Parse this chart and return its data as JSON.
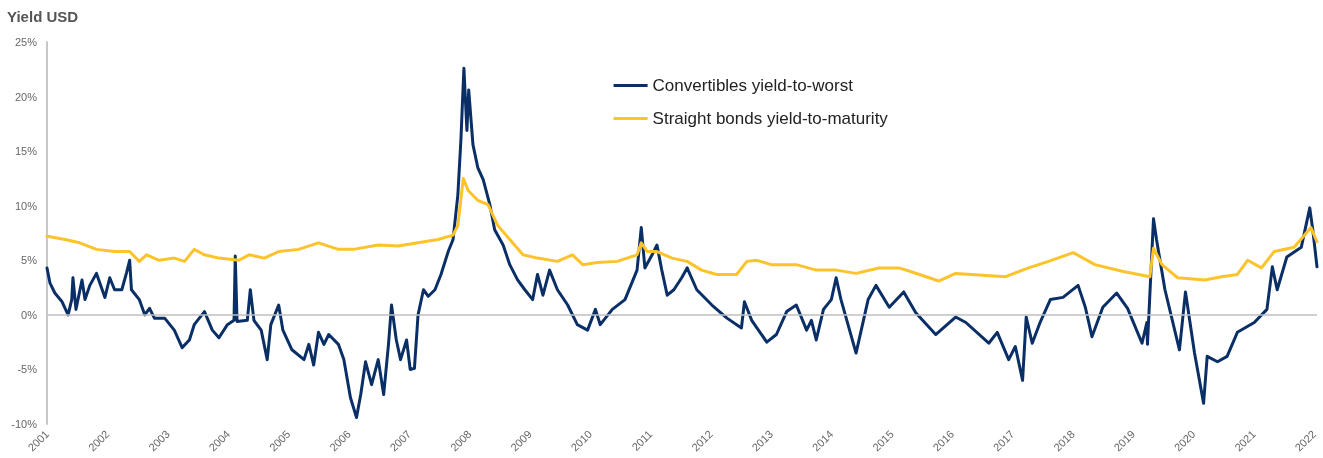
{
  "chart_data": {
    "type": "line",
    "ylabel": "Yield USD",
    "xlim": [
      2001,
      2022.05
    ],
    "xticks": [
      2001,
      2002,
      2003,
      2004,
      2005,
      2006,
      2007,
      2008,
      2009,
      2010,
      2011,
      2012,
      2013,
      2014,
      2015,
      2016,
      2017,
      2018,
      2019,
      2020,
      2021,
      2022
    ],
    "ylim": [
      -10,
      25
    ],
    "yticks": [
      {
        "value": -10,
        "label": "-10%"
      },
      {
        "value": -5,
        "label": "-5%"
      },
      {
        "value": 0,
        "label": "0%"
      },
      {
        "value": 5,
        "label": "5%"
      },
      {
        "value": 10,
        "label": "10%"
      },
      {
        "value": 15,
        "label": "15%"
      },
      {
        "value": 20,
        "label": "20%"
      },
      {
        "value": 25,
        "label": "25%"
      }
    ],
    "grid": false,
    "legend": "top",
    "marker": "none",
    "line_style": "solid",
    "ref_lines": [
      {
        "axis": "y",
        "value": 0,
        "color": "#bfbfbf"
      }
    ],
    "series": [
      {
        "name": "Convertibles yield-to-worst",
        "color": "#0a2f66",
        "x": [
          2001.0,
          2001.05,
          2001.13,
          2001.25,
          2001.35,
          2001.41,
          2001.43,
          2001.48,
          2001.58,
          2001.63,
          2001.71,
          2001.82,
          2001.96,
          2002.04,
          2002.12,
          2002.24,
          2002.32,
          2002.37,
          2002.4,
          2002.53,
          2002.62,
          2002.7,
          2002.78,
          2002.95,
          2003.11,
          2003.24,
          2003.36,
          2003.44,
          2003.61,
          2003.74,
          2003.85,
          2003.99,
          2004.1,
          2004.12,
          2004.15,
          2004.32,
          2004.37,
          2004.43,
          2004.55,
          2004.65,
          2004.71,
          2004.84,
          2004.91,
          2005.06,
          2005.26,
          2005.34,
          2005.42,
          2005.5,
          2005.59,
          2005.67,
          2005.83,
          2005.92,
          2006.03,
          2006.13,
          2006.2,
          2006.28,
          2006.38,
          2006.49,
          2006.58,
          2006.66,
          2006.71,
          2006.79,
          2006.86,
          2006.96,
          2007.02,
          2007.09,
          2007.15,
          2007.24,
          2007.32,
          2007.43,
          2007.53,
          2007.65,
          2007.73,
          2007.81,
          2007.86,
          2007.91,
          2007.96,
          2007.99,
          2008.06,
          2008.14,
          2008.23,
          2008.34,
          2008.42,
          2008.56,
          2008.67,
          2008.8,
          2008.92,
          2009.05,
          2009.13,
          2009.22,
          2009.33,
          2009.46,
          2009.63,
          2009.79,
          2009.96,
          2010.09,
          2010.17,
          2010.37,
          2010.58,
          2010.78,
          2010.85,
          2010.91,
          2011.03,
          2011.11,
          2011.19,
          2011.28,
          2011.39,
          2011.52,
          2011.61,
          2011.77,
          2012.02,
          2012.27,
          2012.51,
          2012.56,
          2012.68,
          2012.93,
          2013.09,
          2013.26,
          2013.42,
          2013.59,
          2013.67,
          2013.75,
          2013.87,
          2014.0,
          2014.08,
          2014.16,
          2014.41,
          2014.61,
          2014.74,
          2014.96,
          2015.2,
          2015.4,
          2015.73,
          2016.06,
          2016.23,
          2016.61,
          2016.75,
          2016.94,
          2017.05,
          2017.17,
          2017.23,
          2017.33,
          2017.46,
          2017.63,
          2017.84,
          2018.09,
          2018.21,
          2018.32,
          2018.5,
          2018.73,
          2018.91,
          2019.15,
          2019.23,
          2019.24,
          2019.34,
          2019.39,
          2019.53,
          2019.77,
          2019.87,
          2020.02,
          2020.17,
          2020.23,
          2020.4,
          2020.56,
          2020.73,
          2021.01,
          2021.22,
          2021.31,
          2021.39,
          2021.55,
          2021.79,
          2021.93,
          2021.98,
          2022.05
        ],
        "values": [
          4.3,
          2.9,
          2.0,
          1.2,
          0,
          1.4,
          3.4,
          0.5,
          3.2,
          1.4,
          2.7,
          3.8,
          1.6,
          3.4,
          2.3,
          2.3,
          3.9,
          5.0,
          2.3,
          1.4,
          0,
          0.6,
          -0.3,
          -0.3,
          -1.4,
          -3.0,
          -2.3,
          -0.9,
          0.3,
          -1.4,
          -2.1,
          -0.9,
          -0.5,
          5.4,
          -0.6,
          -0.5,
          2.3,
          -0.5,
          -1.4,
          -4.1,
          -0.9,
          0.9,
          -1.4,
          -3.2,
          -4.1,
          -2.7,
          -4.6,
          -1.6,
          -2.7,
          -1.8,
          -2.7,
          -4.1,
          -7.6,
          -9.4,
          -7.3,
          -4.3,
          -6.4,
          -4.1,
          -7.3,
          -2.7,
          0.9,
          -2.3,
          -4.1,
          -2.3,
          -5.0,
          -4.9,
          0,
          2.3,
          1.7,
          2.3,
          3.7,
          5.8,
          6.9,
          11.0,
          16.0,
          22.6,
          16.9,
          20.6,
          15.6,
          13.5,
          12.4,
          10.1,
          7.8,
          6.4,
          4.6,
          3.2,
          2.3,
          1.4,
          3.7,
          1.8,
          4.1,
          2.3,
          0.9,
          -0.9,
          -1.4,
          0.5,
          -0.9,
          0.5,
          1.4,
          4.1,
          8.0,
          4.3,
          5.5,
          6.4,
          4.1,
          1.8,
          2.3,
          3.4,
          4.3,
          2.3,
          0.9,
          -0.3,
          -1.2,
          1.2,
          -0.5,
          -2.5,
          -1.8,
          0.3,
          0.9,
          -1.4,
          -0.5,
          -2.3,
          0.5,
          1.4,
          3.4,
          1.4,
          -3.5,
          1.4,
          2.7,
          0.7,
          2.1,
          0.2,
          -1.8,
          -0.2,
          -0.7,
          -2.6,
          -1.6,
          -4.1,
          -2.9,
          -6.0,
          -0.2,
          -2.6,
          -0.7,
          1.4,
          1.6,
          2.7,
          0.7,
          -2.0,
          0.7,
          2.0,
          0.6,
          -2.6,
          -0.7,
          -2.7,
          8.8,
          6.9,
          2.3,
          -3.2,
          2.1,
          -3.5,
          -8.1,
          -3.8,
          -4.3,
          -3.8,
          -1.6,
          -0.7,
          0.5,
          4.4,
          2.3,
          5.3,
          6.2,
          9.8,
          7.8,
          4.4
        ]
      },
      {
        "name": "Straight bonds yield-to-maturity",
        "color": "#fcc32a",
        "x": [
          2001.0,
          2001.3,
          2001.54,
          2001.82,
          2002.12,
          2002.37,
          2002.53,
          2002.65,
          2002.86,
          2003.11,
          2003.28,
          2003.44,
          2003.61,
          2003.85,
          2004.18,
          2004.35,
          2004.6,
          2004.84,
          2005.17,
          2005.5,
          2005.83,
          2006.08,
          2006.49,
          2006.82,
          2007.15,
          2007.48,
          2007.73,
          2007.81,
          2007.9,
          2007.98,
          2008.14,
          2008.31,
          2008.47,
          2008.67,
          2008.89,
          2009.13,
          2009.46,
          2009.71,
          2009.88,
          2010.12,
          2010.45,
          2010.78,
          2010.85,
          2010.95,
          2011.11,
          2011.36,
          2011.61,
          2011.85,
          2012.1,
          2012.43,
          2012.6,
          2012.76,
          2013.01,
          2013.42,
          2013.75,
          2014.08,
          2014.41,
          2014.79,
          2015.12,
          2015.35,
          2015.78,
          2016.06,
          2016.89,
          2017.27,
          2017.6,
          2018.01,
          2018.37,
          2018.82,
          2019.28,
          2019.34,
          2019.48,
          2019.74,
          2020.19,
          2020.47,
          2020.73,
          2020.9,
          2021.13,
          2021.34,
          2021.67,
          2021.95,
          2022.05
        ],
        "values": [
          7.2,
          6.9,
          6.6,
          6.0,
          5.8,
          5.8,
          4.9,
          5.5,
          5.0,
          5.2,
          4.9,
          6.0,
          5.5,
          5.2,
          5.0,
          5.5,
          5.2,
          5.8,
          6.0,
          6.6,
          6.0,
          6.0,
          6.4,
          6.3,
          6.6,
          6.9,
          7.3,
          8.2,
          12.5,
          11.4,
          10.5,
          10.1,
          8.2,
          6.9,
          5.5,
          5.2,
          4.9,
          5.5,
          4.6,
          4.8,
          4.9,
          5.5,
          6.6,
          5.8,
          5.8,
          5.2,
          4.9,
          4.1,
          3.7,
          3.7,
          4.9,
          5.0,
          4.6,
          4.6,
          4.1,
          4.1,
          3.8,
          4.3,
          4.3,
          3.9,
          3.1,
          3.8,
          3.5,
          4.3,
          4.9,
          5.7,
          4.6,
          4.0,
          3.5,
          6.1,
          4.6,
          3.4,
          3.2,
          3.5,
          3.7,
          5.0,
          4.3,
          5.8,
          6.2,
          8.0,
          6.7
        ]
      }
    ]
  }
}
